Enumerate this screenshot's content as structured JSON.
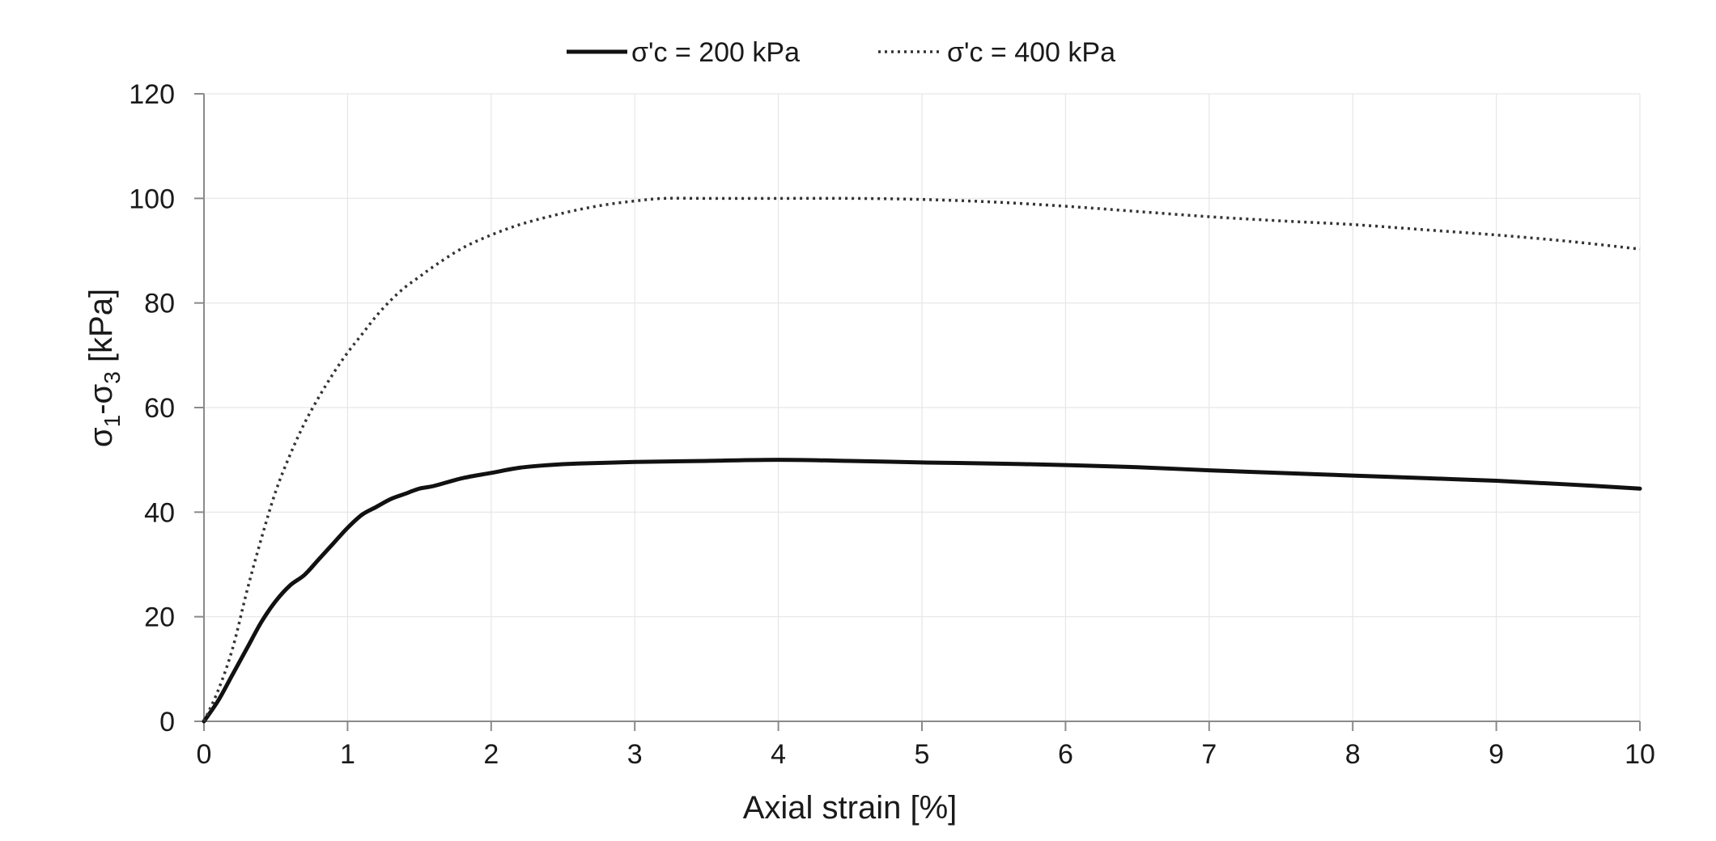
{
  "chart_data": {
    "type": "line",
    "title": "",
    "xlabel": "Axial strain [%]",
    "ylabel": {
      "main": "σ",
      "sub1": "1",
      "dash": "-σ",
      "sub3": "3",
      "unit": " [kPa]"
    },
    "xlim": [
      0,
      10
    ],
    "ylim": [
      0,
      120
    ],
    "x_ticks": [
      "0",
      "1",
      "2",
      "3",
      "4",
      "5",
      "6",
      "7",
      "8",
      "9",
      "10"
    ],
    "y_ticks": [
      "0",
      "20",
      "40",
      "60",
      "80",
      "100",
      "120"
    ],
    "grid": true,
    "legend_position": "top-center",
    "series": [
      {
        "name": "σ'c = 200 kPa",
        "style": "solid",
        "color": "#111111",
        "x": [
          0,
          0.1,
          0.2,
          0.3,
          0.4,
          0.5,
          0.6,
          0.7,
          0.8,
          0.9,
          1.0,
          1.1,
          1.2,
          1.3,
          1.4,
          1.5,
          1.6,
          1.8,
          2.0,
          2.2,
          2.4,
          2.6,
          3.0,
          3.5,
          4.0,
          4.5,
          5.0,
          5.5,
          6.0,
          6.5,
          7.0,
          7.5,
          8.0,
          8.5,
          9.0,
          9.5,
          10.0
        ],
        "y": [
          0,
          4,
          9,
          14,
          19,
          23,
          26,
          28,
          31,
          34,
          37,
          39.5,
          41,
          42.5,
          43.5,
          44.5,
          45,
          46.5,
          47.5,
          48.5,
          49,
          49.3,
          49.6,
          49.8,
          50,
          49.8,
          49.5,
          49.3,
          49,
          48.6,
          48,
          47.5,
          47,
          46.5,
          46,
          45.3,
          44.5
        ]
      },
      {
        "name": "σ'c = 400 kPa",
        "style": "dotted",
        "color": "#333333",
        "x": [
          0,
          0.1,
          0.2,
          0.3,
          0.4,
          0.5,
          0.6,
          0.7,
          0.8,
          0.9,
          1.0,
          1.1,
          1.2,
          1.3,
          1.4,
          1.5,
          1.6,
          1.8,
          2.0,
          2.2,
          2.4,
          2.6,
          2.8,
          3.0,
          3.2,
          3.5,
          4.0,
          4.5,
          5.0,
          5.5,
          6.0,
          6.5,
          7.0,
          7.5,
          8.0,
          8.5,
          9.0,
          9.5,
          10.0
        ],
        "y": [
          0,
          6,
          14,
          25,
          35,
          44,
          51,
          57,
          62,
          66.5,
          70.5,
          74,
          77.5,
          80.5,
          83,
          85,
          87,
          90.5,
          93,
          95,
          96.5,
          97.8,
          98.8,
          99.5,
          100,
          100,
          100,
          100,
          99.8,
          99.3,
          98.5,
          97.5,
          96.5,
          95.7,
          95,
          94,
          93,
          91.8,
          90.3
        ]
      }
    ]
  }
}
